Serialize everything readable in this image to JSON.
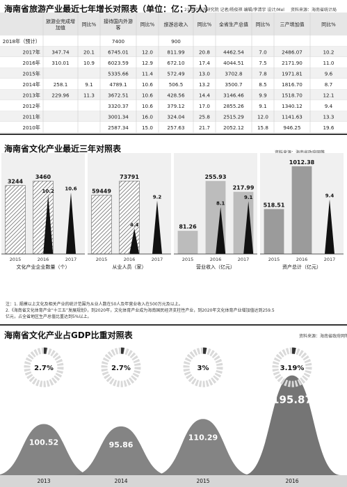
{
  "table_section": {
    "title": "海南省旅游产业最近七年增长对照表（单位：亿；万人）",
    "credit": "21世纪经济研究院 记者/杨俊祺 编辑/李清宇 设计/Mel",
    "source": "资料来源：海南省统计局",
    "headers": [
      "",
      "旅游业完成增加值",
      "同比%",
      "接待国内外游客",
      "同比%",
      "旅游总收入",
      "同比%",
      "全省生产总值",
      "同比%",
      "三产增加值",
      "同比%"
    ],
    "rows": [
      [
        "2018年（预计）",
        "",
        "",
        "7400",
        "",
        "900",
        "",
        "",
        "",
        "",
        ""
      ],
      [
        "2017年",
        "347.74",
        "20.1",
        "6745.01",
        "12.0",
        "811.99",
        "20.8",
        "4462.54",
        "7.0",
        "2486.07",
        "10.2"
      ],
      [
        "2016年",
        "310.01",
        "10.9",
        "6023.59",
        "12.9",
        "672.10",
        "17.4",
        "4044.51",
        "7.5",
        "2171.90",
        "11.0"
      ],
      [
        "2015年",
        "",
        "",
        "5335.66",
        "11.4",
        "572.49",
        "13.0",
        "3702.8",
        "7.8",
        "1971.81",
        "9.6"
      ],
      [
        "2014年",
        "258.1",
        "9.1",
        "4789.1",
        "10.6",
        "506.5",
        "13.2",
        "3500.7",
        "8.5",
        "1816.70",
        "8.7"
      ],
      [
        "2013年",
        "229.96",
        "11.3",
        "3672.51",
        "10.6",
        "428.56",
        "14.4",
        "3146.46",
        "9.9",
        "1518.70",
        "12.1"
      ],
      [
        "2012年",
        "",
        "",
        "3320.37",
        "10.6",
        "379.12",
        "17.0",
        "2855.26",
        "9.1",
        "1340.12",
        "9.4"
      ],
      [
        "2011年",
        "",
        "",
        "3001.34",
        "16.0",
        "324.04",
        "25.8",
        "2515.29",
        "12.0",
        "1141.63",
        "13.3"
      ],
      [
        "2010年",
        "",
        "",
        "2587.34",
        "15.0",
        "257.63",
        "21.7",
        "2052.12",
        "15.8",
        "946.25",
        "19.6"
      ]
    ]
  },
  "culture_section": {
    "title": "海南省文化产业最近三年对照表",
    "source": "资料来源：海南省政府网等",
    "legend": "同比%",
    "notes": [
      "注：1. 规模以上文化及相关产业的统计范围为从业人数在50人及年营业收入在500万元及以上。",
      "2.《海南省文化体育产业“十三五”发展规划》，到2020年，文化体育产业成为海南国民经济支柱性产业，到2020年文化体育产业增加值达到259.5",
      "亿元，占全省地区生产总值比重达到5%以上。"
    ]
  },
  "gdp_section": {
    "title": "海南省文化产业占GDP比重对照表",
    "source": "资料来源：海南省政府网等"
  },
  "chart_data": [
    {
      "type": "bar",
      "title": "海南省文化产业最近三年对照表",
      "groups": [
        {
          "label": "文化产业企业数量（个）",
          "categories": [
            "2015",
            "2016",
            "2017"
          ],
          "values": [
            3244,
            3460,
            null
          ],
          "bar_labels": [
            "3244",
            "3460",
            ""
          ],
          "yoy": [
            null,
            10.2,
            10.6
          ],
          "yoy_labels": [
            "",
            "10.2",
            "10.6"
          ]
        },
        {
          "label": "从业人员（家）",
          "categories": [
            "2015",
            "2016",
            "2017"
          ],
          "values": [
            59449,
            73791,
            null
          ],
          "bar_labels": [
            "59449",
            "73791",
            ""
          ],
          "yoy": [
            null,
            4.4,
            9.2
          ],
          "yoy_labels": [
            "",
            "4.4",
            "9.2"
          ]
        },
        {
          "label": "营业收入（亿元）",
          "categories": [
            "2015",
            "2016",
            "2017"
          ],
          "values": [
            81.26,
            255.93,
            217.99
          ],
          "bar_labels": [
            "81.26",
            "255.93",
            "217.99"
          ],
          "yoy": [
            null,
            8.1,
            9.1
          ],
          "yoy_labels": [
            "",
            "8.1",
            "9.1"
          ]
        },
        {
          "label": "资产总计（亿元）",
          "categories": [
            "2015",
            "2016",
            "2017"
          ],
          "values": [
            518.51,
            1012.38,
            null
          ],
          "bar_labels": [
            "518.51",
            "1012.38",
            ""
          ],
          "yoy": [
            null,
            null,
            9.4
          ],
          "yoy_labels": [
            "",
            "",
            "9.4"
          ]
        }
      ],
      "legend": "同比%"
    },
    {
      "type": "area",
      "title": "海南省文化产业占GDP比重对照表",
      "categories": [
        "2013",
        "2014",
        "2015",
        "2016"
      ],
      "values": [
        100.52,
        95.86,
        110.29,
        195.87
      ],
      "value_labels": [
        "100.52",
        "95.86",
        "110.29",
        "195.87"
      ],
      "share_percent": [
        2.7,
        2.7,
        3.0,
        3.19
      ],
      "share_labels": [
        "2.7%",
        "2.7%",
        "3%",
        "3.19%"
      ]
    }
  ]
}
